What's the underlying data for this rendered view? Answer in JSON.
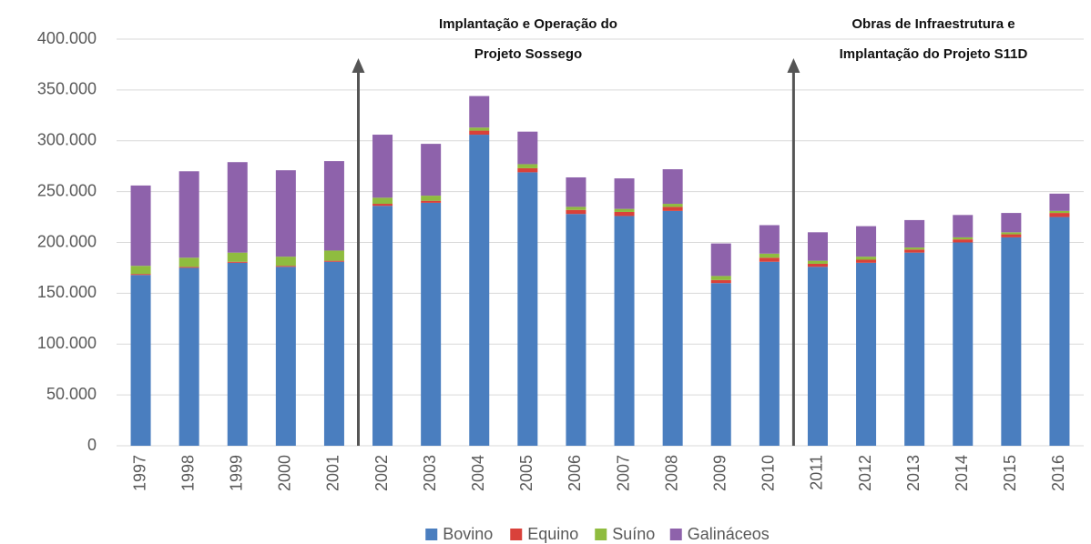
{
  "chart_data": {
    "type": "stacked_bar",
    "categories": [
      "1997",
      "1998",
      "1999",
      "2000",
      "2001",
      "2002",
      "2003",
      "2004",
      "2005",
      "2006",
      "2007",
      "2008",
      "2009",
      "2010",
      "2011",
      "2012",
      "2013",
      "2014",
      "2015",
      "2016"
    ],
    "series": [
      {
        "name": "Bovino",
        "color": "#4a7ebf",
        "values": [
          168,
          175,
          180,
          176,
          181,
          236,
          239,
          306,
          269,
          228,
          226,
          231,
          160,
          181,
          176,
          180,
          190,
          200,
          205,
          225
        ]
      },
      {
        "name": "Equino",
        "color": "#d9413a",
        "values": [
          1,
          1,
          1,
          1,
          1,
          2,
          2,
          4,
          4,
          4,
          4,
          4,
          3,
          4,
          3,
          3,
          3,
          3,
          3,
          4
        ]
      },
      {
        "name": "Suíno",
        "color": "#8fbc3f",
        "values": [
          8,
          9,
          9,
          9,
          10,
          6,
          5,
          3,
          4,
          3,
          3,
          3,
          4,
          4,
          3,
          3,
          2,
          2,
          2,
          2
        ]
      },
      {
        "name": "Galináceos",
        "color": "#8e62ab",
        "values": [
          79,
          85,
          89,
          85,
          88,
          62,
          51,
          31,
          32,
          29,
          30,
          34,
          32,
          28,
          28,
          30,
          27,
          22,
          19,
          17
        ]
      }
    ],
    "ylim": [
      0,
      400000
    ],
    "yticks": [
      0,
      {
        "value": 50000,
        "label": "50.000"
      },
      {
        "value": 100000,
        "label": "100.000"
      },
      {
        "value": 150000,
        "label": "150.000"
      },
      {
        "value": 200000,
        "label": "200.000"
      },
      {
        "value": 250000,
        "label": "250.000"
      },
      {
        "value": 300000,
        "label": "300.000"
      },
      {
        "value": 350000,
        "label": "350.000"
      },
      {
        "value": 400000,
        "label": "400.000"
      }
    ],
    "value_scale": 1000,
    "grid": true,
    "legend": "bottom",
    "annotations": [
      {
        "lines": [
          "Implantação e Operação do",
          "Projeto Sossego"
        ]
      },
      {
        "lines": [
          "Obras de Infraestrutura e",
          "Implantação do Projeto S11D"
        ]
      }
    ]
  }
}
